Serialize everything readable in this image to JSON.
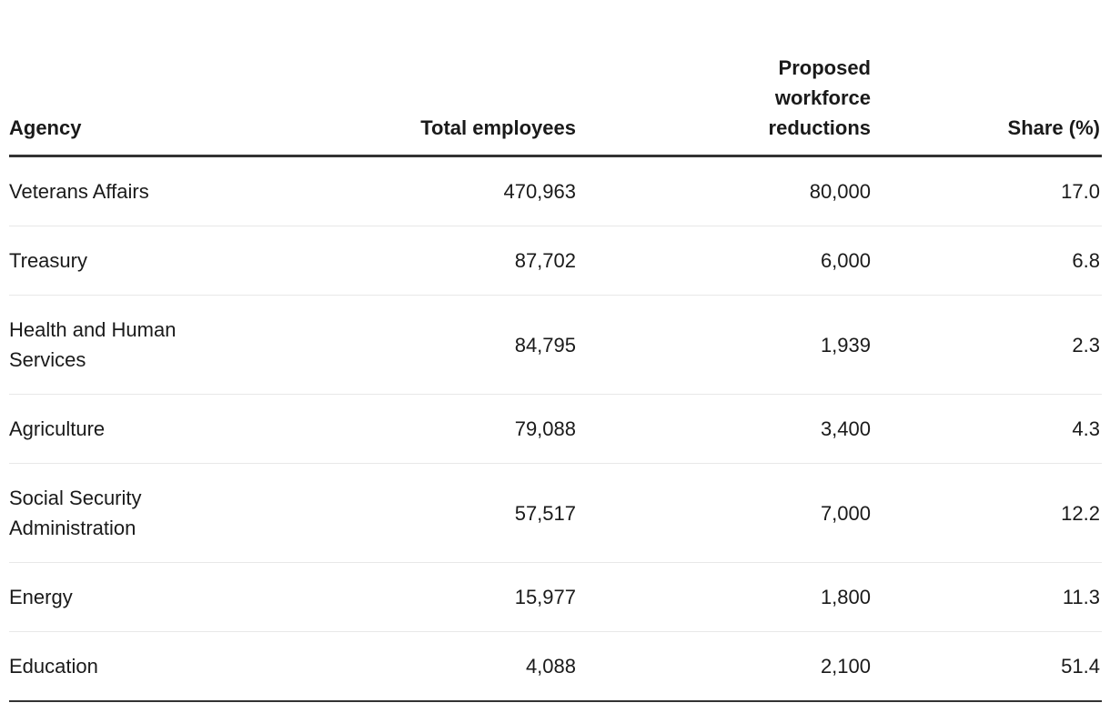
{
  "table": {
    "columns": [
      {
        "key": "agency",
        "label": "Agency",
        "align": "left"
      },
      {
        "key": "total_employees",
        "label": "Total employees",
        "align": "right"
      },
      {
        "key": "proposed_reductions",
        "label": "Proposed workforce reductions",
        "align": "right"
      },
      {
        "key": "share_pct",
        "label": "Share (%)",
        "align": "right"
      }
    ],
    "rows": [
      {
        "agency": "Veterans Affairs",
        "total_employees": "470,963",
        "proposed_reductions": "80,000",
        "share_pct": "17.0"
      },
      {
        "agency": "Treasury",
        "total_employees": "87,702",
        "proposed_reductions": "6,000",
        "share_pct": "6.8"
      },
      {
        "agency": "Health and Human Services",
        "total_employees": "84,795",
        "proposed_reductions": "1,939",
        "share_pct": "2.3"
      },
      {
        "agency": "Agriculture",
        "total_employees": "79,088",
        "proposed_reductions": "3,400",
        "share_pct": "4.3"
      },
      {
        "agency": "Social Security Administration",
        "total_employees": "57,517",
        "proposed_reductions": "7,000",
        "share_pct": "12.2"
      },
      {
        "agency": "Energy",
        "total_employees": "15,977",
        "proposed_reductions": "1,800",
        "share_pct": "11.3"
      },
      {
        "agency": "Education",
        "total_employees": "4,088",
        "proposed_reductions": "2,100",
        "share_pct": "51.4"
      }
    ]
  },
  "colors": {
    "text": "#1a1a1a",
    "heavy_rule": "#333333",
    "light_rule": "#e8e8e8",
    "background": "#ffffff"
  },
  "chart_data": {
    "type": "table",
    "columns": [
      "Agency",
      "Total employees",
      "Proposed workforce reductions",
      "Share (%)"
    ],
    "rows": [
      [
        "Veterans Affairs",
        470963,
        80000,
        17.0
      ],
      [
        "Treasury",
        87702,
        6000,
        6.8
      ],
      [
        "Health and Human Services",
        84795,
        1939,
        2.3
      ],
      [
        "Agriculture",
        79088,
        3400,
        4.3
      ],
      [
        "Social Security Administration",
        57517,
        7000,
        12.2
      ],
      [
        "Energy",
        15977,
        1800,
        11.3
      ],
      [
        "Education",
        4088,
        2100,
        51.4
      ]
    ]
  }
}
